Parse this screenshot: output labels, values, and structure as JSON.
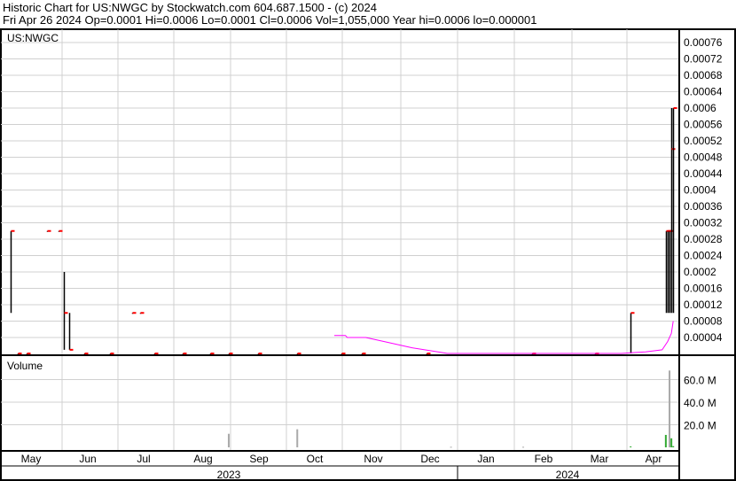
{
  "header": {
    "title": "Historic Chart for US:NWGC by Stockwatch.com 604.687.1500 - (c) 2024",
    "quote": "Fri Apr 26 2024   Op=0.0001   Hi=0.0006   Lo=0.0001   Cl=0.0006   Vol=1,055,000   Year hi=0.0006   lo=0.000001"
  },
  "chart_data": [
    {
      "type": "bar",
      "title": "US:NWGC",
      "subtype": "ohlc",
      "ylim": [
        0,
        0.00078
      ],
      "y_ticks": [
        "0.00004",
        "0.00008",
        "0.00012",
        "0.00016",
        "0.0002",
        "0.00024",
        "0.00028",
        "0.00032",
        "0.00036",
        "0.0004",
        "0.00044",
        "0.00048",
        "0.00052",
        "0.00056",
        "0.0006",
        "0.00064",
        "0.00068",
        "0.00072",
        "0.00076"
      ],
      "x_ticks": [
        "May",
        "Jun",
        "Jul",
        "Aug",
        "Sep",
        "Oct",
        "Nov",
        "Dec",
        "Jan",
        "Feb",
        "Mar",
        "Apr"
      ],
      "years": [
        "2023",
        "2024"
      ],
      "grid": true,
      "colors": {
        "bar": "#000000",
        "close": "#ff0000",
        "moving_average": "#ff00ff",
        "volume_up": "#33aa33",
        "volume": "#aaaaaa"
      },
      "ohlc": [
        {
          "date": "2023-05-04",
          "high": 0.0003,
          "low": 0.0001,
          "close": 0.0003
        },
        {
          "date": "2023-05-08",
          "high": 1e-06,
          "low": 1e-06,
          "close": 1e-06
        },
        {
          "date": "2023-05-13",
          "high": 1e-06,
          "low": 1e-06,
          "close": 1e-06
        },
        {
          "date": "2023-05-24",
          "high": 0.0003,
          "low": 0.0003,
          "close": 0.0003
        },
        {
          "date": "2023-05-30",
          "high": 0.0003,
          "low": 0.0003,
          "close": 0.0003
        },
        {
          "date": "2023-06-02",
          "high": 0.0002,
          "low": 1e-05,
          "close": 0.0001
        },
        {
          "date": "2023-06-05",
          "high": 0.0001,
          "low": 1e-05,
          "close": 1e-05
        },
        {
          "date": "2023-06-13",
          "high": 1e-06,
          "low": 1e-06,
          "close": 1e-06
        },
        {
          "date": "2023-06-27",
          "high": 1e-06,
          "low": 1e-06,
          "close": 1e-06
        },
        {
          "date": "2023-07-09",
          "high": 0.0001,
          "low": 0.0001,
          "close": 0.0001
        },
        {
          "date": "2023-07-13",
          "high": 0.0001,
          "low": 0.0001,
          "close": 0.0001
        },
        {
          "date": "2023-07-21",
          "high": 1e-06,
          "low": 1e-06,
          "close": 1e-06
        },
        {
          "date": "2023-08-05",
          "high": 1e-06,
          "low": 1e-06,
          "close": 1e-06
        },
        {
          "date": "2023-08-20",
          "high": 1e-06,
          "low": 1e-06,
          "close": 1e-06
        },
        {
          "date": "2023-08-30",
          "high": 1e-06,
          "low": 1e-06,
          "close": 1e-06
        },
        {
          "date": "2023-09-15",
          "high": 1e-06,
          "low": 1e-06,
          "close": 1e-06
        },
        {
          "date": "2023-10-06",
          "high": 1e-06,
          "low": 1e-06,
          "close": 1e-06
        },
        {
          "date": "2023-10-30",
          "high": 1e-06,
          "low": 1e-06,
          "close": 1e-06
        },
        {
          "date": "2023-11-10",
          "high": 1e-06,
          "low": 1e-06,
          "close": 1e-06
        },
        {
          "date": "2023-12-15",
          "high": 1e-06,
          "low": 1e-06,
          "close": 1e-06
        },
        {
          "date": "2024-02-10",
          "high": 1e-06,
          "low": 1e-06,
          "close": 1e-06
        },
        {
          "date": "2024-03-15",
          "high": 1e-06,
          "low": 1e-06,
          "close": 1e-06
        },
        {
          "date": "2024-04-03",
          "high": 0.0001,
          "low": 1e-06,
          "close": 0.0001
        },
        {
          "date": "2024-04-22",
          "high": 0.0003,
          "low": 0.0001,
          "close": 0.0003
        },
        {
          "date": "2024-04-23",
          "high": 0.0003,
          "low": 0.0001,
          "close": 0.0003
        },
        {
          "date": "2024-04-24",
          "high": 0.0003,
          "low": 0.0001,
          "close": 0.0003
        },
        {
          "date": "2024-04-25",
          "high": 0.0006,
          "low": 0.0001,
          "close": 0.0005
        },
        {
          "date": "2024-04-26",
          "high": 0.0006,
          "low": 0.0001,
          "close": 0.0006
        }
      ],
      "moving_average": [
        [
          "2023-10-26",
          4.5e-05
        ],
        [
          "2023-11-01",
          4.5e-05
        ],
        [
          "2023-11-02",
          4e-05
        ],
        [
          "2023-11-12",
          4e-05
        ],
        [
          "2023-11-22",
          3e-05
        ],
        [
          "2023-12-07",
          1.5e-05
        ],
        [
          "2023-12-21",
          5e-06
        ],
        [
          "2023-12-26",
          1e-06
        ],
        [
          "2024-03-29",
          1e-06
        ],
        [
          "2024-04-04",
          3e-06
        ],
        [
          "2024-04-11",
          5e-06
        ],
        [
          "2024-04-20",
          1e-05
        ],
        [
          "2024-04-23",
          3e-05
        ],
        [
          "2024-04-25",
          5e-05
        ],
        [
          "2024-04-26",
          8e-05
        ]
      ]
    },
    {
      "type": "bar",
      "title": "Volume",
      "ylim": [
        0,
        80000000
      ],
      "y_ticks": [
        "20.0 M",
        "40.0 M",
        "60.0 M"
      ],
      "volume": [
        {
          "date": "2023-08-30",
          "value": 12000000,
          "up": false
        },
        {
          "date": "2023-10-06",
          "value": 16000000,
          "up": false
        },
        {
          "date": "2023-12-28",
          "value": 500000,
          "up": false
        },
        {
          "date": "2024-02-05",
          "value": 500000,
          "up": false
        },
        {
          "date": "2024-04-03",
          "value": 800000,
          "up": true
        },
        {
          "date": "2024-04-22",
          "value": 11000000,
          "up": true
        },
        {
          "date": "2024-04-24",
          "value": 68000000,
          "up": false
        },
        {
          "date": "2024-04-25",
          "value": 8000000,
          "up": true
        },
        {
          "date": "2024-04-26",
          "value": 1055000,
          "up": true
        }
      ]
    }
  ]
}
